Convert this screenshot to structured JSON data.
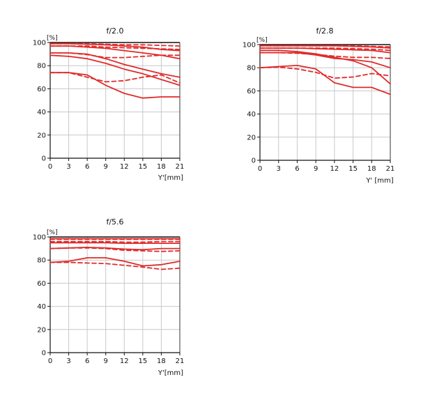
{
  "chart_data": [
    {
      "type": "line",
      "title": "f/2.0",
      "ylabel": "[%]",
      "xlabel": "Y'[mm]",
      "x_ticks": [
        0,
        3,
        6,
        9,
        12,
        15,
        18,
        21
      ],
      "y_ticks": [
        0,
        20,
        40,
        60,
        80,
        100
      ],
      "xlim": [
        0,
        21
      ],
      "ylim": [
        0,
        100
      ],
      "grid": true,
      "series": [
        {
          "style": "solid",
          "color": "#e02a2a",
          "x": [
            0,
            3,
            6,
            9,
            12,
            15,
            18,
            21
          ],
          "y": [
            99,
            99,
            98.5,
            98,
            97,
            96,
            94,
            93
          ]
        },
        {
          "style": "dashed",
          "color": "#e02a2a",
          "x": [
            0,
            3,
            6,
            9,
            12,
            15,
            18,
            21
          ],
          "y": [
            99,
            99,
            99,
            98.5,
            98,
            98,
            97.5,
            97
          ]
        },
        {
          "style": "solid",
          "color": "#e02a2a",
          "x": [
            0,
            3,
            6,
            9,
            12,
            15,
            18,
            21
          ],
          "y": [
            97,
            97,
            96,
            95,
            93,
            91,
            89,
            86
          ]
        },
        {
          "style": "dashed",
          "color": "#e02a2a",
          "x": [
            0,
            3,
            6,
            9,
            12,
            15,
            18,
            21
          ],
          "y": [
            97,
            97,
            97,
            96,
            95.5,
            95,
            94.5,
            94
          ]
        },
        {
          "style": "solid",
          "color": "#e02a2a",
          "x": [
            0,
            3,
            6,
            9,
            12,
            15,
            18,
            21
          ],
          "y": [
            91,
            91,
            90,
            86,
            81,
            77,
            73,
            70
          ]
        },
        {
          "style": "dashed",
          "color": "#e02a2a",
          "x": [
            0,
            3,
            6,
            9,
            12,
            15,
            18,
            21
          ],
          "y": [
            91,
            91,
            89.5,
            87,
            87,
            88,
            89,
            89
          ]
        },
        {
          "style": "solid",
          "color": "#e02a2a",
          "x": [
            0,
            3,
            6,
            9,
            12,
            15,
            18,
            21
          ],
          "y": [
            74,
            74,
            72,
            63,
            56,
            52,
            53,
            53
          ]
        },
        {
          "style": "dashed",
          "color": "#e02a2a",
          "x": [
            0,
            3,
            6,
            9,
            12,
            15,
            18,
            21
          ],
          "y": [
            74,
            74,
            70,
            66,
            67,
            70,
            72,
            65
          ]
        },
        {
          "style": "solid",
          "color": "#e02a2a",
          "x": [
            0,
            3,
            6,
            9,
            12,
            15,
            18,
            21
          ],
          "y": [
            89,
            88,
            86,
            82,
            77,
            73,
            68,
            63
          ]
        }
      ]
    },
    {
      "type": "line",
      "title": "f/2.8",
      "ylabel": "[%]",
      "xlabel": "Y' [mm]",
      "x_ticks": [
        0,
        3,
        6,
        9,
        12,
        15,
        18,
        21
      ],
      "y_ticks": [
        0,
        20,
        40,
        60,
        80,
        100
      ],
      "xlim": [
        0,
        21
      ],
      "ylim": [
        0,
        100
      ],
      "grid": true,
      "series": [
        {
          "style": "solid",
          "color": "#e02a2a",
          "x": [
            0,
            3,
            6,
            9,
            12,
            15,
            18,
            21
          ],
          "y": [
            99,
            99,
            99,
            99,
            99,
            98.5,
            98,
            97
          ]
        },
        {
          "style": "dashed",
          "color": "#e02a2a",
          "x": [
            0,
            3,
            6,
            9,
            12,
            15,
            18,
            21
          ],
          "y": [
            99,
            99,
            99,
            99,
            99,
            99,
            98.5,
            98
          ]
        },
        {
          "style": "solid",
          "color": "#e02a2a",
          "x": [
            0,
            3,
            6,
            9,
            12,
            15,
            18,
            21
          ],
          "y": [
            97,
            97,
            97,
            96.5,
            96,
            95.5,
            95,
            93
          ]
        },
        {
          "style": "dashed",
          "color": "#e02a2a",
          "x": [
            0,
            3,
            6,
            9,
            12,
            15,
            18,
            21
          ],
          "y": [
            97,
            97,
            97,
            97,
            97,
            96.5,
            96,
            95
          ]
        },
        {
          "style": "solid",
          "color": "#e02a2a",
          "x": [
            0,
            3,
            6,
            9,
            12,
            15,
            18,
            21
          ],
          "y": [
            93,
            93,
            93,
            91,
            88,
            87,
            85,
            80
          ]
        },
        {
          "style": "dashed",
          "color": "#e02a2a",
          "x": [
            0,
            3,
            6,
            9,
            12,
            15,
            18,
            21
          ],
          "y": [
            93,
            93,
            92.5,
            91.5,
            90,
            89,
            89,
            88
          ]
        },
        {
          "style": "solid",
          "color": "#e02a2a",
          "x": [
            0,
            3,
            6,
            9,
            12,
            15,
            18,
            21
          ],
          "y": [
            80,
            81,
            82,
            79,
            67,
            63,
            63,
            57
          ]
        },
        {
          "style": "dashed",
          "color": "#e02a2a",
          "x": [
            0,
            3,
            6,
            9,
            12,
            15,
            18,
            21
          ],
          "y": [
            80,
            80.5,
            79,
            76,
            71,
            72,
            75,
            73
          ]
        },
        {
          "style": "solid",
          "color": "#e02a2a",
          "x": [
            0,
            3,
            6,
            9,
            12,
            15,
            18,
            21
          ],
          "y": [
            95,
            95,
            94,
            92,
            89,
            86,
            80,
            66
          ]
        }
      ]
    },
    {
      "type": "line",
      "title": "f/5.6",
      "ylabel": "[%]",
      "xlabel": "Y'[mm]",
      "x_ticks": [
        0,
        3,
        6,
        9,
        12,
        15,
        18,
        21
      ],
      "y_ticks": [
        0,
        20,
        40,
        60,
        80,
        100
      ],
      "xlim": [
        0,
        21
      ],
      "ylim": [
        0,
        100
      ],
      "grid": true,
      "series": [
        {
          "style": "solid",
          "color": "#e02a2a",
          "x": [
            0,
            3,
            6,
            9,
            12,
            15,
            18,
            21
          ],
          "y": [
            98.5,
            98.5,
            98.5,
            98.5,
            98.5,
            98.5,
            98.5,
            98.5
          ]
        },
        {
          "style": "dashed",
          "color": "#e02a2a",
          "x": [
            0,
            3,
            6,
            9,
            12,
            15,
            18,
            21
          ],
          "y": [
            98,
            98,
            98,
            98,
            98,
            98,
            98,
            98
          ]
        },
        {
          "style": "solid",
          "color": "#e02a2a",
          "x": [
            0,
            3,
            6,
            9,
            12,
            15,
            18,
            21
          ],
          "y": [
            95,
            95,
            95,
            95,
            94.5,
            94.5,
            94.5,
            94.5
          ]
        },
        {
          "style": "dashed",
          "color": "#e02a2a",
          "x": [
            0,
            3,
            6,
            9,
            12,
            15,
            18,
            21
          ],
          "y": [
            96,
            96,
            96,
            96,
            95.5,
            95.5,
            96,
            96
          ]
        },
        {
          "style": "solid",
          "color": "#e02a2a",
          "x": [
            0,
            3,
            6,
            9,
            12,
            15,
            18,
            21
          ],
          "y": [
            90,
            90.5,
            91,
            90.5,
            89.5,
            89,
            90,
            90
          ]
        },
        {
          "style": "dashed",
          "color": "#e02a2a",
          "x": [
            0,
            3,
            6,
            9,
            12,
            15,
            18,
            21
          ],
          "y": [
            90,
            90.5,
            90.5,
            90,
            88.5,
            88,
            87.5,
            88
          ]
        },
        {
          "style": "solid",
          "color": "#e02a2a",
          "x": [
            0,
            3,
            6,
            9,
            12,
            15,
            18,
            21
          ],
          "y": [
            78,
            79,
            82,
            82,
            79,
            75,
            76,
            79
          ]
        },
        {
          "style": "dashed",
          "color": "#e02a2a",
          "x": [
            0,
            3,
            6,
            9,
            12,
            15,
            18,
            21
          ],
          "y": [
            78,
            78,
            77.5,
            77,
            75.5,
            74,
            72,
            73
          ]
        }
      ]
    }
  ]
}
